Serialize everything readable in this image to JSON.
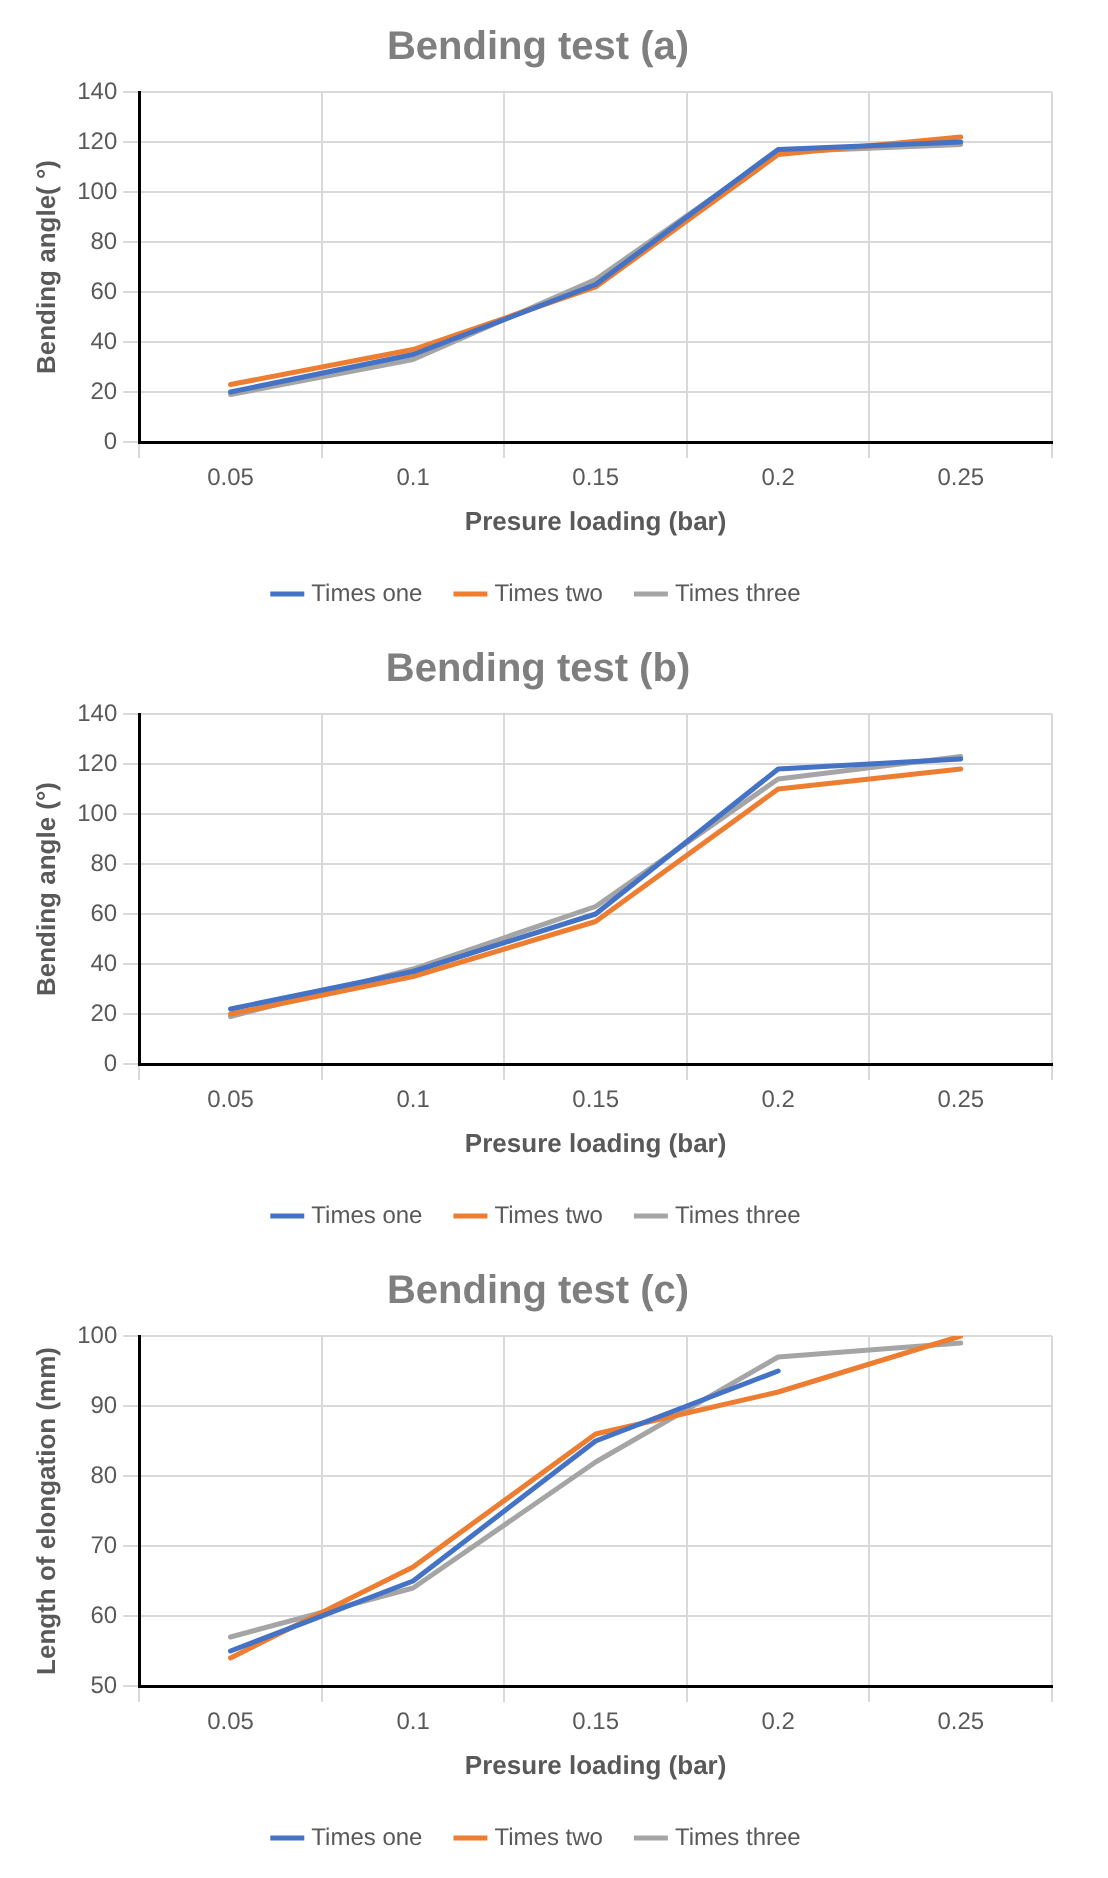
{
  "chart_data": [
    {
      "type": "line",
      "title": "Bending test (a)",
      "xlabel": "Presure loading (bar)",
      "ylabel": "Bending angle( °)",
      "categories": [
        "0.05",
        "0.1",
        "0.15",
        "0.2",
        "0.25"
      ],
      "ylim": [
        0,
        140
      ],
      "yticks": [
        0,
        20,
        40,
        60,
        80,
        100,
        120,
        140
      ],
      "grid": true,
      "legend": "bottom",
      "marker": "none",
      "line_style": "solid",
      "series": [
        {
          "name": "Times one",
          "color": "#4472c4",
          "values": [
            20,
            35,
            63,
            117,
            120
          ]
        },
        {
          "name": "Times two",
          "color": "#ed7d31",
          "values": [
            23,
            37,
            62,
            115,
            122
          ]
        },
        {
          "name": "Times three",
          "color": "#a5a5a5",
          "values": [
            19,
            33,
            65,
            116,
            119
          ]
        }
      ]
    },
    {
      "type": "line",
      "title": "Bending test (b)",
      "xlabel": "Presure loading (bar)",
      "ylabel": "Bending angle (°)",
      "categories": [
        "0.05",
        "0.1",
        "0.15",
        "0.2",
        "0.25"
      ],
      "ylim": [
        0,
        140
      ],
      "yticks": [
        0,
        20,
        40,
        60,
        80,
        100,
        120,
        140
      ],
      "grid": true,
      "legend": "bottom",
      "marker": "none",
      "line_style": "solid",
      "series": [
        {
          "name": "Times one",
          "color": "#4472c4",
          "values": [
            22,
            37,
            60,
            118,
            122
          ]
        },
        {
          "name": "Times two",
          "color": "#ed7d31",
          "values": [
            20,
            35,
            57,
            110,
            118
          ]
        },
        {
          "name": "Times three",
          "color": "#a5a5a5",
          "values": [
            19,
            38,
            63,
            114,
            123
          ]
        }
      ]
    },
    {
      "type": "line",
      "title": "Bending test (c)",
      "xlabel": "Presure loading (bar)",
      "ylabel": "Length of elongation (mm)",
      "categories": [
        "0.05",
        "0.1",
        "0.15",
        "0.2",
        "0.25"
      ],
      "ylim": [
        50,
        100
      ],
      "yticks": [
        50,
        60,
        70,
        80,
        90,
        100
      ],
      "grid": true,
      "legend": "bottom",
      "marker": "none",
      "line_style": "solid",
      "series": [
        {
          "name": "Times one",
          "color": "#4472c4",
          "values": [
            55,
            65,
            85,
            95,
            null
          ]
        },
        {
          "name": "Times two",
          "color": "#ed7d31",
          "values": [
            54,
            67,
            86,
            92,
            100
          ]
        },
        {
          "name": "Times three",
          "color": "#a5a5a5",
          "values": [
            57,
            64,
            82,
            97,
            99
          ]
        }
      ]
    }
  ]
}
